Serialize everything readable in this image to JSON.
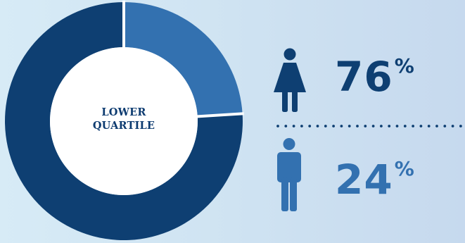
{
  "chart_data": {
    "type": "pie",
    "style": "donut",
    "center_label_lines": [
      "LOWER",
      "QUARTILE"
    ],
    "slices": [
      {
        "label": "Women",
        "value": 76,
        "color": "#0e3f72"
      },
      {
        "label": "Men",
        "value": 24,
        "color": "#3371b0"
      }
    ],
    "separator_color": "#ffffff"
  },
  "stats": {
    "female": {
      "value": "76",
      "symbol": "%",
      "color": "#0e3f72",
      "icon": "female-icon"
    },
    "male": {
      "value": "24",
      "symbol": "%",
      "color": "#3371b0",
      "icon": "male-icon"
    }
  },
  "divider_color": "#0e3f72"
}
